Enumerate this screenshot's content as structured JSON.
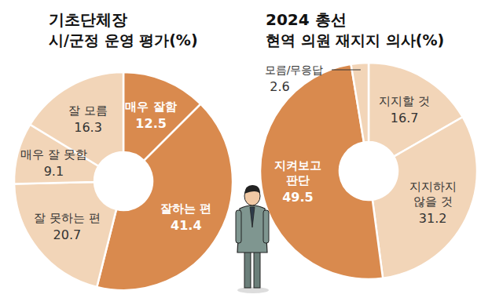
{
  "chart_data": [
    {
      "type": "donut",
      "title": "기초단체장",
      "subtitle": "시/군정 운영 평가(%)",
      "categories": [
        "매우 잘함",
        "잘하는 편",
        "잘 못하는 편",
        "매우 잘 못함",
        "잘 모름"
      ],
      "values": [
        12.5,
        41.4,
        20.7,
        9.1,
        16.3
      ],
      "colors": [
        "#d98a4e",
        "#d98a4e",
        "#f2d5b8",
        "#f2d5b8",
        "#f2d5b8"
      ],
      "data_labels": true
    },
    {
      "type": "donut",
      "title": "2024 총선",
      "subtitle": "현역 의원 재지지 의사(%)",
      "categories": [
        "지지할 것",
        "지지하지\n않을 것",
        "지켜보고\n판단",
        "모름/무응답"
      ],
      "values": [
        16.7,
        31.2,
        49.5,
        2.6
      ],
      "colors": [
        "#f2d5b8",
        "#f2d5b8",
        "#d98a4e",
        "#f2d5b8"
      ],
      "data_labels": true
    }
  ]
}
